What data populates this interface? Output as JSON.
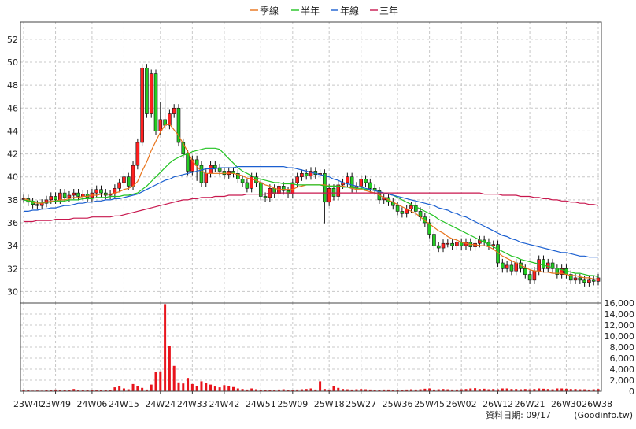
{
  "legend": {
    "items": [
      {
        "label": "季線",
        "color": "#e8731a"
      },
      {
        "label": "半年",
        "color": "#22c322"
      },
      {
        "label": "年線",
        "color": "#1a5fd0"
      },
      {
        "label": "三年",
        "color": "#c8174e"
      }
    ]
  },
  "footer": {
    "date_label": "資料日期: 09/17",
    "source": "(Goodinfo.tw)"
  },
  "chart_data": [
    {
      "type": "line",
      "title": "",
      "xlabel": "",
      "ylabel": "",
      "ylim": [
        29,
        53.5
      ],
      "y_ticks": [
        30,
        32,
        34,
        36,
        38,
        40,
        42,
        44,
        46,
        48,
        50,
        52
      ],
      "x_ticks": [
        "23W40",
        "23W49",
        "24W06",
        "24W15",
        "24W24",
        "24W33",
        "24W42",
        "24W51",
        "25W09",
        "25W18",
        "25W27",
        "25W36",
        "25W45",
        "26W02",
        "26W12",
        "26W21",
        "26W30",
        "26W38"
      ],
      "grid": true,
      "legend_position": "top-center",
      "close_weekly": [
        38.1,
        37.8,
        37.6,
        37.5,
        37.7,
        38.0,
        38.3,
        38.0,
        38.6,
        38.2,
        38.4,
        38.6,
        38.3,
        38.5,
        38.2,
        38.6,
        38.9,
        38.6,
        38.4,
        38.5,
        39.0,
        39.5,
        40.0,
        39.2,
        41.0,
        43.0,
        49.5,
        45.5,
        49.0,
        44.0,
        45.0,
        44.5,
        45.5,
        46.0,
        43.0,
        42.0,
        40.5,
        41.5,
        41.0,
        39.5,
        40.3,
        41.0,
        40.8,
        40.5,
        40.2,
        40.5,
        40.3,
        39.8,
        39.5,
        39.0,
        40.0,
        39.5,
        38.3,
        38.2,
        39.0,
        38.5,
        39.2,
        38.8,
        38.5,
        39.5,
        40.0,
        40.3,
        40.1,
        40.5,
        40.2,
        40.3,
        37.8,
        39.0,
        38.3,
        39.3,
        39.5,
        40.0,
        39.0,
        39.2,
        39.8,
        39.5,
        39.0,
        38.8,
        38.0,
        38.2,
        37.8,
        37.5,
        37.0,
        36.8,
        37.2,
        37.5,
        37.0,
        36.5,
        36.0,
        35.0,
        34.0,
        33.8,
        34.2,
        34.2,
        34.0,
        34.3,
        34.0,
        34.3,
        33.9,
        34.2,
        34.5,
        34.3,
        34.0,
        34.1,
        32.5,
        32.0,
        32.3,
        31.8,
        32.5,
        32.0,
        31.5,
        31.0,
        31.8,
        32.8,
        32.0,
        32.5,
        32.0,
        31.5,
        32.0,
        31.5,
        31.0,
        31.2,
        31.0,
        30.8,
        31.0,
        30.9,
        31.2
      ],
      "series": [
        {
          "name": "季線",
          "values": [
            38.1,
            38.0,
            37.8,
            37.7,
            37.7,
            37.8,
            37.9,
            37.9,
            38.0,
            38.0,
            38.1,
            38.2,
            38.2,
            38.3,
            38.3,
            38.4,
            38.4,
            38.5,
            38.5,
            38.5,
            38.6,
            38.7,
            38.9,
            39.0,
            39.2,
            39.6,
            40.5,
            41.3,
            42.3,
            43.1,
            43.9,
            44.5,
            44.6,
            44.1,
            43.6,
            42.9,
            42.2,
            41.4,
            40.9,
            40.5,
            40.3,
            40.3,
            40.3,
            40.3,
            40.3,
            40.3,
            40.3,
            40.2,
            40.1,
            39.9,
            39.8,
            39.7,
            39.5,
            39.3,
            39.2,
            39.0,
            38.9,
            38.9,
            38.9,
            38.9,
            39.1,
            39.2,
            39.3,
            39.3,
            39.3,
            39.3,
            39.3,
            39.2,
            39.2,
            39.2,
            39.2,
            39.1,
            39.0,
            38.9,
            38.9,
            38.8,
            38.7,
            38.6,
            38.4,
            38.2,
            38.0,
            37.8,
            37.6,
            37.4,
            37.2,
            37.0,
            36.8,
            36.5,
            36.2,
            35.9,
            35.6,
            35.3,
            35.1,
            34.8,
            34.6,
            34.5,
            34.3,
            34.2,
            34.1,
            34.1,
            34.0,
            34.0,
            33.9,
            33.7,
            33.4,
            33.1,
            32.9,
            32.7,
            32.5,
            32.3,
            32.1,
            31.9,
            31.8,
            31.8,
            31.7,
            31.7,
            31.6,
            31.6,
            31.6,
            31.5,
            31.4,
            31.4,
            31.3,
            31.2,
            31.2,
            31.1,
            31.1
          ]
        },
        {
          "name": "半年",
          "values": [
            38.0,
            37.9,
            37.9,
            37.8,
            37.8,
            37.8,
            37.8,
            37.9,
            37.9,
            37.9,
            38.0,
            38.0,
            38.0,
            38.1,
            38.1,
            38.1,
            38.2,
            38.2,
            38.2,
            38.3,
            38.3,
            38.3,
            38.4,
            38.4,
            38.5,
            38.6,
            38.9,
            39.2,
            39.6,
            40.0,
            40.4,
            40.8,
            41.2,
            41.5,
            41.7,
            41.9,
            42.0,
            42.2,
            42.3,
            42.4,
            42.5,
            42.5,
            42.5,
            42.4,
            42.0,
            41.6,
            41.2,
            40.8,
            40.5,
            40.3,
            40.1,
            39.9,
            39.8,
            39.7,
            39.6,
            39.5,
            39.5,
            39.4,
            39.4,
            39.4,
            39.3,
            39.3,
            39.3,
            39.3,
            39.3,
            39.3,
            39.2,
            39.2,
            39.2,
            39.2,
            39.1,
            39.1,
            39.1,
            39.0,
            39.0,
            38.9,
            38.9,
            38.8,
            38.7,
            38.6,
            38.5,
            38.4,
            38.2,
            38.0,
            37.8,
            37.6,
            37.4,
            37.2,
            37.0,
            36.8,
            36.6,
            36.3,
            36.1,
            35.9,
            35.7,
            35.5,
            35.3,
            35.1,
            34.9,
            34.7,
            34.5,
            34.3,
            34.1,
            33.9,
            33.7,
            33.5,
            33.3,
            33.1,
            33.0,
            32.8,
            32.7,
            32.6,
            32.5,
            32.4,
            32.3,
            32.2,
            32.1,
            32.0,
            31.9,
            31.8,
            31.7,
            31.6,
            31.6,
            31.5,
            31.4,
            31.4,
            31.3
          ]
        },
        {
          "name": "年線",
          "values": [
            37.0,
            37.0,
            37.1,
            37.1,
            37.2,
            37.2,
            37.3,
            37.3,
            37.4,
            37.5,
            37.5,
            37.6,
            37.7,
            37.7,
            37.8,
            37.8,
            37.9,
            37.9,
            38.0,
            38.0,
            38.1,
            38.1,
            38.2,
            38.3,
            38.4,
            38.5,
            38.7,
            38.9,
            39.1,
            39.3,
            39.5,
            39.7,
            39.8,
            40.0,
            40.1,
            40.2,
            40.3,
            40.4,
            40.5,
            40.6,
            40.7,
            40.7,
            40.7,
            40.8,
            40.8,
            40.8,
            40.8,
            40.9,
            40.9,
            40.9,
            40.9,
            40.9,
            40.9,
            40.9,
            40.9,
            40.9,
            40.9,
            40.9,
            40.8,
            40.8,
            40.7,
            40.6,
            40.5,
            40.4,
            40.3,
            40.2,
            40.1,
            40.0,
            39.8,
            39.7,
            39.5,
            39.4,
            39.3,
            39.2,
            39.1,
            39.0,
            38.9,
            38.8,
            38.7,
            38.6,
            38.5,
            38.4,
            38.3,
            38.2,
            38.1,
            38.0,
            37.9,
            37.8,
            37.7,
            37.6,
            37.5,
            37.3,
            37.2,
            37.1,
            36.9,
            36.8,
            36.6,
            36.5,
            36.3,
            36.1,
            35.9,
            35.7,
            35.5,
            35.3,
            35.1,
            34.9,
            34.8,
            34.6,
            34.5,
            34.3,
            34.2,
            34.1,
            34.0,
            33.9,
            33.8,
            33.7,
            33.6,
            33.5,
            33.4,
            33.4,
            33.3,
            33.2,
            33.1,
            33.1,
            33.0,
            33.0,
            33.0
          ]
        },
        {
          "name": "三年",
          "values": [
            36.1,
            36.1,
            36.1,
            36.2,
            36.2,
            36.2,
            36.2,
            36.3,
            36.3,
            36.3,
            36.3,
            36.4,
            36.4,
            36.4,
            36.4,
            36.5,
            36.5,
            36.5,
            36.5,
            36.5,
            36.6,
            36.6,
            36.7,
            36.8,
            36.9,
            37.0,
            37.1,
            37.2,
            37.3,
            37.4,
            37.5,
            37.6,
            37.7,
            37.8,
            37.9,
            38.0,
            38.0,
            38.1,
            38.1,
            38.2,
            38.2,
            38.2,
            38.3,
            38.3,
            38.3,
            38.4,
            38.4,
            38.4,
            38.4,
            38.5,
            38.5,
            38.5,
            38.5,
            38.5,
            38.6,
            38.6,
            38.6,
            38.6,
            38.6,
            38.6,
            38.6,
            38.6,
            38.6,
            38.6,
            38.6,
            38.6,
            38.6,
            38.6,
            38.6,
            38.6,
            38.6,
            38.6,
            38.6,
            38.6,
            38.6,
            38.6,
            38.6,
            38.6,
            38.6,
            38.6,
            38.6,
            38.6,
            38.6,
            38.6,
            38.6,
            38.6,
            38.6,
            38.6,
            38.6,
            38.6,
            38.6,
            38.6,
            38.6,
            38.6,
            38.6,
            38.6,
            38.6,
            38.6,
            38.6,
            38.6,
            38.6,
            38.5,
            38.5,
            38.5,
            38.5,
            38.4,
            38.4,
            38.4,
            38.4,
            38.3,
            38.3,
            38.3,
            38.2,
            38.2,
            38.1,
            38.1,
            38.0,
            38.0,
            37.9,
            37.9,
            37.8,
            37.8,
            37.7,
            37.7,
            37.6,
            37.6,
            37.5
          ]
        }
      ]
    },
    {
      "type": "bar",
      "title": "",
      "xlabel": "",
      "ylabel": "",
      "ylim": [
        0,
        16000
      ],
      "y_ticks": [
        0,
        2000,
        4000,
        6000,
        8000,
        10000,
        12000,
        14000,
        16000
      ],
      "y_tick_labels": [
        "0",
        "2,000",
        "4,000",
        "6,000",
        "8,000",
        "10,000",
        "12,000",
        "14,000",
        "16,000"
      ],
      "grid": true,
      "values": [
        200,
        150,
        100,
        120,
        100,
        150,
        200,
        300,
        180,
        160,
        250,
        400,
        220,
        180,
        160,
        150,
        250,
        200,
        180,
        250,
        700,
        900,
        500,
        350,
        1300,
        1000,
        600,
        300,
        1200,
        3500,
        3600,
        15800,
        8200,
        4600,
        1600,
        1400,
        2400,
        1300,
        1000,
        1800,
        1500,
        1200,
        850,
        700,
        1100,
        900,
        750,
        500,
        400,
        300,
        500,
        350,
        250,
        220,
        200,
        250,
        300,
        350,
        250,
        250,
        300,
        350,
        400,
        500,
        300,
        1800,
        400,
        300,
        1000,
        600,
        400,
        350,
        300,
        350,
        400,
        350,
        300,
        250,
        250,
        300,
        300,
        250,
        250,
        250,
        300,
        350,
        300,
        350,
        450,
        500,
        300,
        350,
        400,
        350,
        300,
        300,
        350,
        400,
        500,
        550,
        400,
        450,
        350,
        400,
        350,
        500,
        500,
        400,
        400,
        350,
        400,
        350,
        400,
        500,
        450,
        400,
        350,
        500,
        500,
        450,
        400,
        400,
        350,
        350,
        300,
        350,
        400
      ]
    }
  ]
}
